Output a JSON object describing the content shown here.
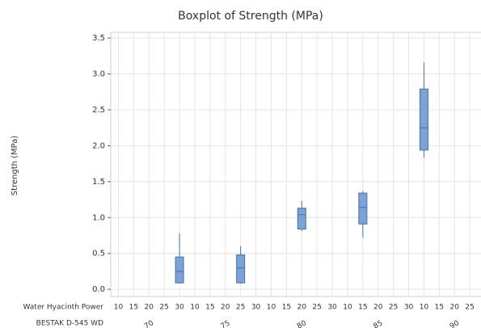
{
  "chart_data": {
    "type": "boxplot",
    "title": "Boxplot of Strength (MPa)",
    "y_label": "Strength (MPa)",
    "x_row_labels": [
      "Water Hyacinth Power",
      "BESTAK D-545 WD"
    ],
    "categories": [
      "10",
      "15",
      "20",
      "25",
      "30",
      "10",
      "15",
      "20",
      "25",
      "30",
      "10",
      "15",
      "20",
      "25",
      "30",
      "10",
      "15",
      "20",
      "25",
      "30",
      "10",
      "15",
      "20",
      "25",
      "30"
    ],
    "group_labels": [
      "70",
      "75",
      "80",
      "85",
      "90"
    ],
    "min": [
      null,
      null,
      null,
      null,
      0.08,
      null,
      null,
      null,
      0.08,
      null,
      null,
      null,
      0.81,
      null,
      null,
      null,
      0.72,
      null,
      null,
      null,
      1.83,
      null,
      null,
      null,
      null
    ],
    "q1": [
      null,
      null,
      null,
      null,
      0.09,
      null,
      null,
      null,
      0.09,
      null,
      null,
      null,
      0.84,
      null,
      null,
      null,
      0.91,
      null,
      null,
      null,
      1.94,
      null,
      null,
      null,
      null
    ],
    "median": [
      null,
      null,
      null,
      null,
      0.25,
      null,
      null,
      null,
      0.3,
      null,
      null,
      null,
      1.04,
      null,
      null,
      null,
      1.14,
      null,
      null,
      null,
      2.25,
      null,
      null,
      null,
      null
    ],
    "q3": [
      null,
      null,
      null,
      null,
      0.45,
      null,
      null,
      null,
      0.48,
      null,
      null,
      null,
      1.13,
      null,
      null,
      null,
      1.34,
      null,
      null,
      null,
      2.79,
      null,
      null,
      null,
      null
    ],
    "max": [
      null,
      null,
      null,
      null,
      0.78,
      null,
      null,
      null,
      0.6,
      null,
      null,
      null,
      1.23,
      null,
      null,
      null,
      1.37,
      null,
      null,
      null,
      3.16,
      null,
      null,
      null,
      null
    ],
    "color": "#7ba3d8",
    "edge_color": "#4a6fa5",
    "ylim": [
      -0.1,
      3.58
    ],
    "yticks": [
      {
        "value": 0,
        "label": "0.0"
      },
      0.5,
      {
        "value": 1,
        "label": "1.0"
      },
      1.5,
      {
        "value": 2,
        "label": "2.0"
      },
      2.5,
      {
        "value": 3,
        "label": "3.0"
      },
      3.5
    ],
    "grid": true
  }
}
